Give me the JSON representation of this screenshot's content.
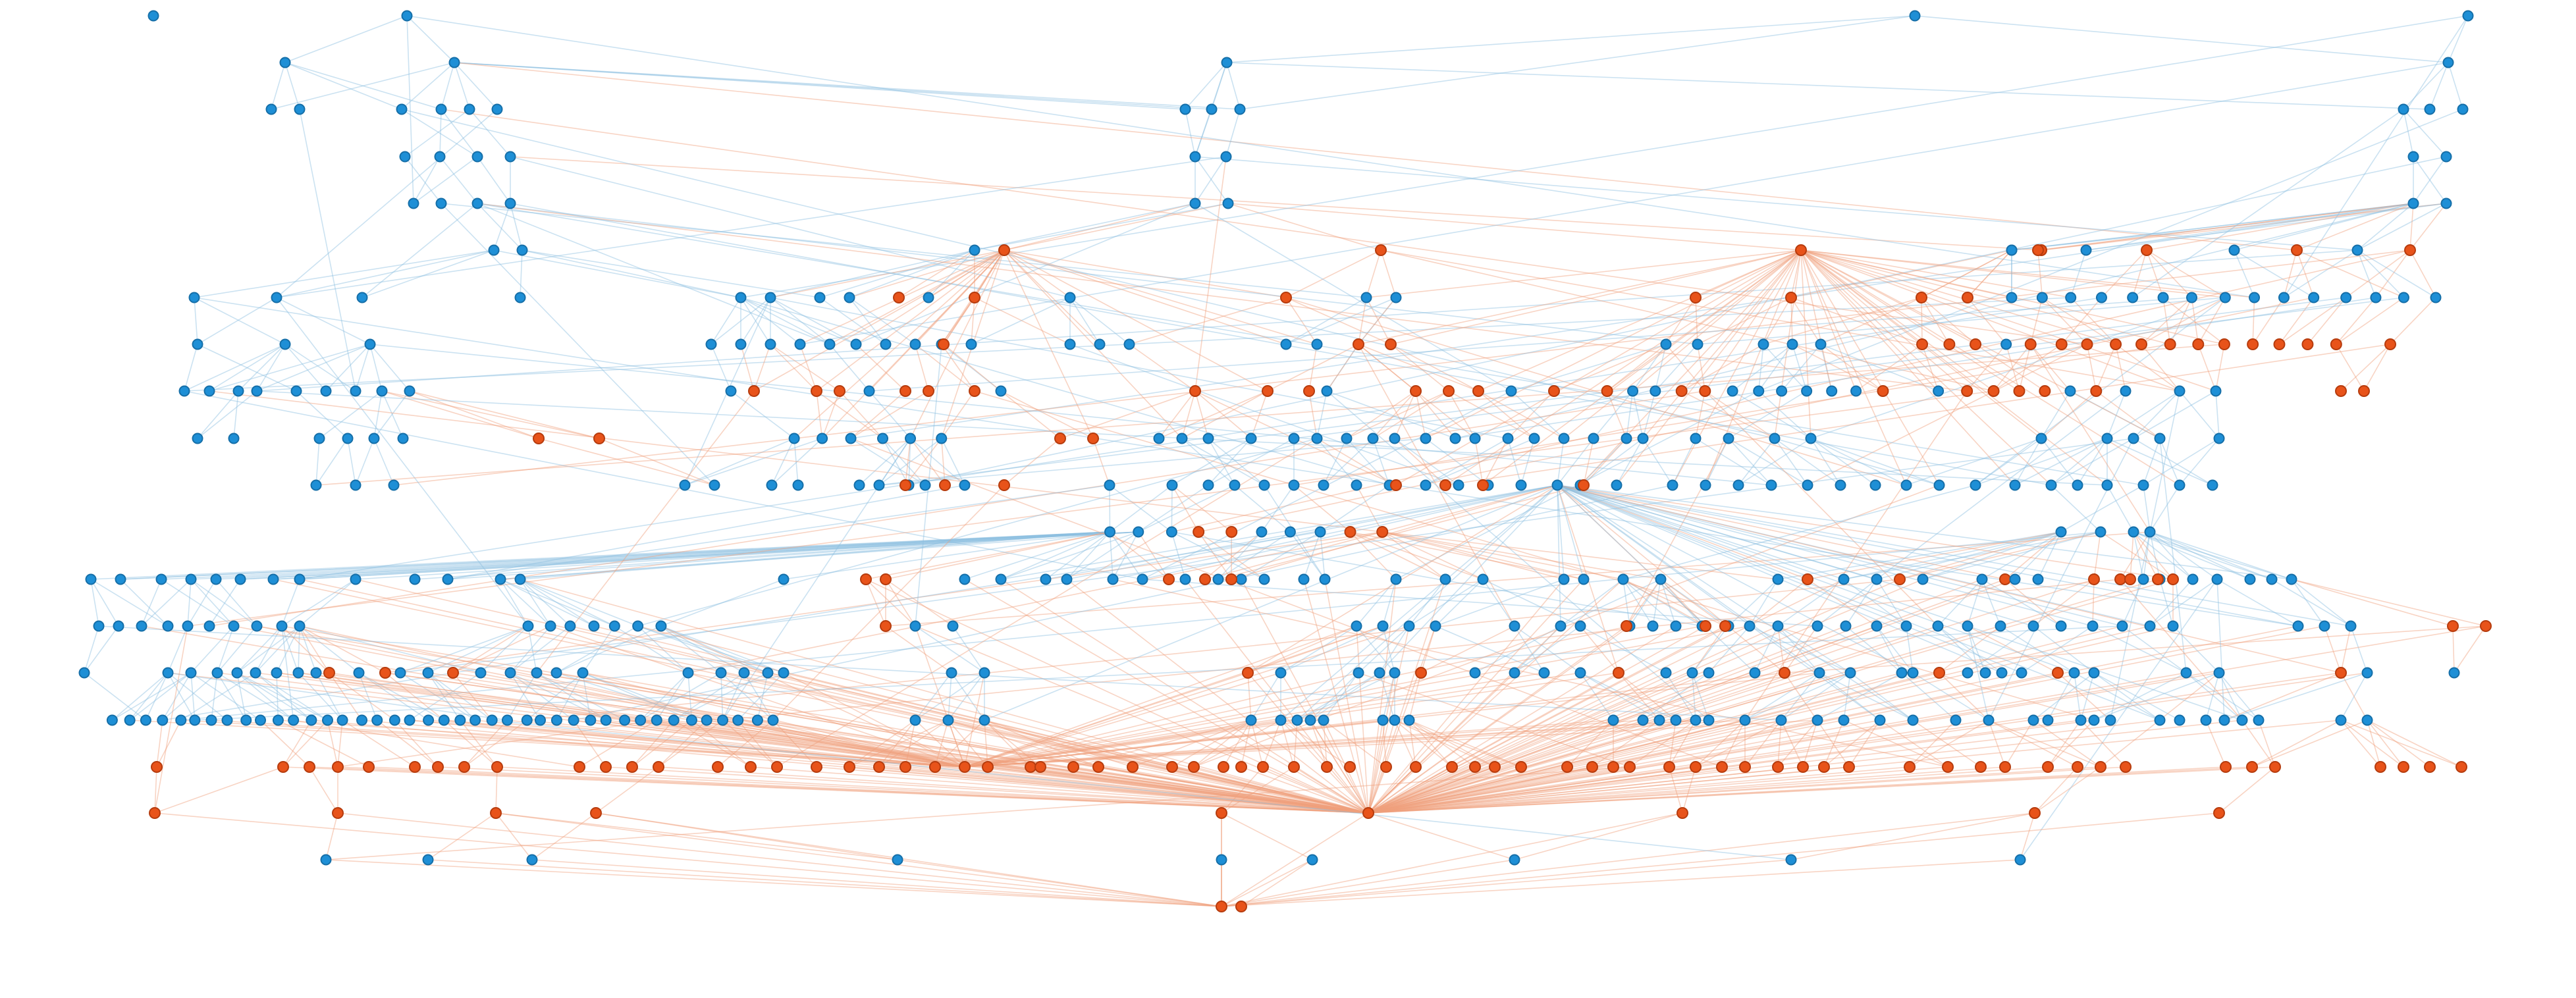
{
  "diagram": {
    "type": "layered-dependency-graph",
    "labels_visible": false,
    "colors": {
      "blue_node": "#1e8fd6",
      "blue_node_stroke": "#166fa8",
      "orange_node": "#e8531a",
      "orange_node_stroke": "#b63c0e",
      "blue_edge": "#8cbfdf",
      "orange_edge": "#efa07c",
      "background": "#ffffff"
    }
  }
}
